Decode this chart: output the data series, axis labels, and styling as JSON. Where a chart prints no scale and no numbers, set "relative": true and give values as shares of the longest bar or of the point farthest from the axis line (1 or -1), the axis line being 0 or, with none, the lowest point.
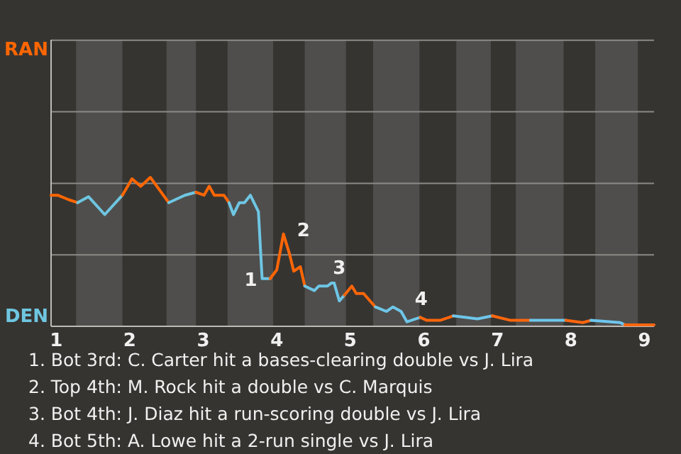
{
  "chart_data": {
    "type": "line",
    "relative": true,
    "xlim": [
      0.93,
      9.13
    ],
    "xticks": [
      1,
      2,
      3,
      4,
      5,
      6,
      7,
      8,
      9
    ],
    "marker": "none",
    "line_style": "solid",
    "ref_lines": [
      {
        "axis": "y",
        "value": 0.48,
        "color": "#8c8a87"
      },
      {
        "axis": "y",
        "value": 0.96,
        "color": "#8c8a87"
      },
      {
        "axis": "y",
        "value": 1.44,
        "color": "#8c8a87"
      },
      {
        "axis": "y",
        "value": 1.92,
        "color": "#8c8a87"
      }
    ],
    "bands": [
      {
        "axis": "x",
        "from": 1.27,
        "to": 1.9,
        "color": "#4f4e4c"
      },
      {
        "axis": "x",
        "from": 2.5,
        "to": 2.9,
        "color": "#4f4e4c"
      },
      {
        "axis": "x",
        "from": 3.33,
        "to": 3.95,
        "color": "#4f4e4c"
      },
      {
        "axis": "x",
        "from": 4.38,
        "to": 4.94,
        "color": "#4f4e4c"
      },
      {
        "axis": "x",
        "from": 5.31,
        "to": 5.94,
        "color": "#4f4e4c"
      },
      {
        "axis": "x",
        "from": 6.44,
        "to": 6.91,
        "color": "#4f4e4c"
      },
      {
        "axis": "x",
        "from": 7.25,
        "to": 7.9,
        "color": "#4f4e4c"
      },
      {
        "axis": "x",
        "from": 8.33,
        "to": 8.91,
        "color": "#4f4e4c"
      }
    ],
    "series": [
      {
        "color": "#ff6600",
        "x": [
          0.93,
          1.02,
          1.17,
          1.29
        ],
        "values": [
          0.88,
          0.88,
          0.85,
          0.83
        ]
      },
      {
        "color": "#6ec6e0",
        "x": [
          1.29,
          1.44,
          1.66,
          1.9
        ],
        "values": [
          0.83,
          0.87,
          0.75,
          0.88
        ]
      },
      {
        "color": "#ff6602",
        "x": [
          1.9,
          2.03,
          2.15,
          2.28,
          2.53
        ],
        "values": [
          0.88,
          0.99,
          0.94,
          1,
          0.83
        ]
      },
      {
        "color": "#6ec6e2",
        "x": [
          2.53,
          2.75,
          2.9
        ],
        "values": [
          0.83,
          0.88,
          0.9
        ]
      },
      {
        "color": "#ff6604",
        "x": [
          2.9,
          3.01,
          3.08,
          3.15,
          3.28,
          3.35
        ],
        "values": [
          0.9,
          0.88,
          0.94,
          0.88,
          0.88,
          0.83
        ]
      },
      {
        "color": "#6ec6e4",
        "x": [
          3.35,
          3.41,
          3.49,
          3.56,
          3.64,
          3.75,
          3.8,
          3.91
        ],
        "values": [
          0.83,
          0.75,
          0.83,
          0.83,
          0.88,
          0.77,
          0.32,
          0.32
        ]
      },
      {
        "color": "#ff6606",
        "x": [
          3.91,
          4.0,
          4.09,
          4.17,
          4.23,
          4.32,
          4.38
        ],
        "values": [
          0.32,
          0.38,
          0.62,
          0.49,
          0.37,
          0.4,
          0.27
        ]
      },
      {
        "color": "#6ec6e6",
        "x": [
          4.38,
          4.51,
          4.57,
          4.69,
          4.74,
          4.78,
          4.85,
          4.92
        ],
        "values": [
          0.27,
          0.24,
          0.27,
          0.27,
          0.29,
          0.29,
          0.17,
          0.21
        ]
      },
      {
        "color": "#ff6608",
        "x": [
          4.92,
          5.02,
          5.08,
          5.18,
          5.34
        ],
        "values": [
          0.21,
          0.27,
          0.22,
          0.22,
          0.13
        ]
      },
      {
        "color": "#6ec6e8",
        "x": [
          5.34,
          5.49,
          5.58,
          5.69,
          5.77,
          5.95
        ],
        "values": [
          0.13,
          0.1,
          0.13,
          0.1,
          0.03,
          0.06
        ]
      },
      {
        "color": "#ff660a",
        "x": [
          5.95,
          6.04,
          6.22,
          6.4
        ],
        "values": [
          0.06,
          0.04,
          0.04,
          0.07
        ]
      },
      {
        "color": "#6ec6ea",
        "x": [
          6.4,
          6.73,
          6.93
        ],
        "values": [
          0.07,
          0.05,
          0.07
        ]
      },
      {
        "color": "#ff660c",
        "x": [
          6.93,
          7.18,
          7.45
        ],
        "values": [
          0.07,
          0.04,
          0.04
        ]
      },
      {
        "color": "#6ec6ec",
        "x": [
          7.45,
          7.93
        ],
        "values": [
          0.04,
          0.04
        ]
      },
      {
        "color": "#ff660e",
        "x": [
          7.93,
          8.16,
          8.27
        ],
        "values": [
          0.04,
          0.025,
          0.04
        ]
      },
      {
        "color": "#6ec6ee",
        "x": [
          8.27,
          8.67,
          8.73
        ],
        "values": [
          0.04,
          0.025,
          0.01
        ]
      },
      {
        "color": "#ff6610",
        "x": [
          8.73,
          9.13
        ],
        "values": [
          0.01,
          0.01
        ]
      }
    ],
    "annotations": [
      "RAN",
      "DEN",
      {
        "text": "1",
        "x": 3.8,
        "y": 0.32
      },
      {
        "text": "2",
        "x": 4.17,
        "y": 0.49
      },
      {
        "text": "3",
        "x": 4.85,
        "y": 0.17
      },
      {
        "text": "4",
        "x": 5.77,
        "y": 0.03
      },
      "1. Bot 3rd: C. Carter hit a bases-clearing double vs J. Lira",
      "2. Top 4th: M. Rock hit a double vs C. Marquis",
      "3. Bot 4th: J. Diaz hit a run-scoring double vs J. Lira",
      "4. Bot 5th: A. Lowe hit a 2-run single vs J. Lira"
    ]
  }
}
